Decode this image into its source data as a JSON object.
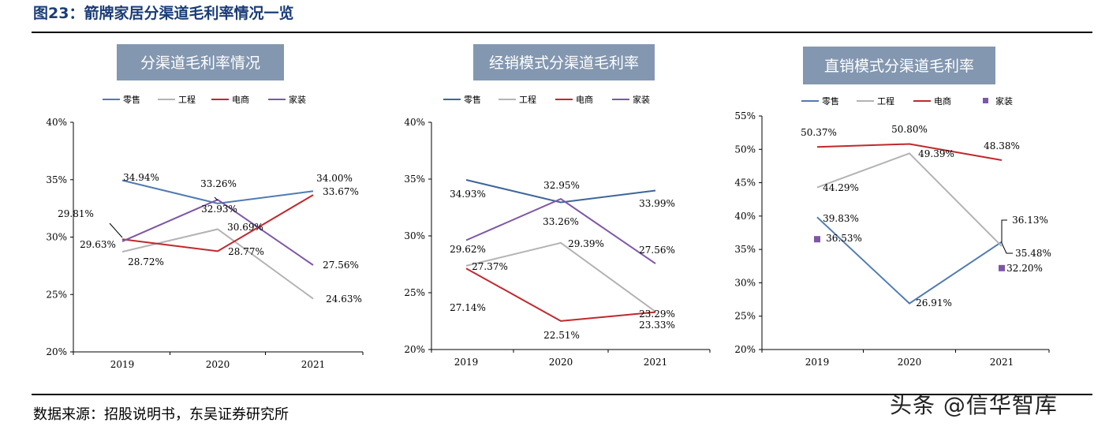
{
  "figure_title": "图23：箭牌家居分渠道毛利率情况一览",
  "source": "数据来源：招股说明书，东吴证券研究所",
  "watermark": "头条 @信华智库",
  "chart_data": [
    {
      "type": "line",
      "title": "分渠道毛利率情况",
      "x": [
        "2019",
        "2020",
        "2021"
      ],
      "ylim": [
        20,
        40
      ],
      "yticks": [
        20,
        25,
        30,
        35,
        40
      ],
      "ytick_labels": [
        "20%",
        "25%",
        "30%",
        "35%",
        "40%"
      ],
      "legend": [
        "零售",
        "工程",
        "电商",
        "家装"
      ],
      "series": [
        {
          "name": "零售",
          "color": "#4f7bb3",
          "values": [
            34.94,
            32.93,
            34.0
          ],
          "labels": [
            "34.94%",
            "32.93%",
            "34.00%"
          ]
        },
        {
          "name": "工程",
          "color": "#b3b3b3",
          "values": [
            28.72,
            30.69,
            24.63
          ],
          "labels": [
            "28.72%",
            "30.69%",
            "24.63%"
          ]
        },
        {
          "name": "电商",
          "color": "#c0282d",
          "values": [
            29.81,
            28.77,
            33.67
          ],
          "labels": [
            "29.81%",
            "28.77%",
            "33.67%"
          ]
        },
        {
          "name": "家装",
          "color": "#7e57a6",
          "values": [
            29.63,
            33.26,
            27.56
          ],
          "labels": [
            "29.63%",
            "33.26%",
            "27.56%"
          ]
        }
      ]
    },
    {
      "type": "line",
      "title": "经销模式分渠道毛利率",
      "x": [
        "2019",
        "2020",
        "2021"
      ],
      "ylim": [
        20,
        40
      ],
      "yticks": [
        20,
        25,
        30,
        35,
        40
      ],
      "ytick_labels": [
        "20%",
        "25%",
        "30%",
        "35%",
        "40%"
      ],
      "legend": [
        "零售",
        "工程",
        "电商",
        "家装"
      ],
      "series": [
        {
          "name": "零售",
          "color": "#3e6598",
          "values": [
            34.93,
            32.95,
            33.99
          ],
          "labels": [
            "34.93%",
            "32.95%",
            "33.99%"
          ]
        },
        {
          "name": "工程",
          "color": "#b3b3b3",
          "values": [
            27.37,
            29.39,
            23.33
          ],
          "labels": [
            "27.37%",
            "29.39%",
            "23.33%"
          ]
        },
        {
          "name": "电商",
          "color": "#c0282d",
          "values": [
            27.14,
            22.51,
            23.29
          ],
          "labels": [
            "27.14%",
            "22.51%",
            "23.29%"
          ]
        },
        {
          "name": "家装",
          "color": "#7e57a6",
          "values": [
            29.62,
            33.26,
            27.56
          ],
          "labels": [
            "29.62%",
            "33.26%",
            "27.56%"
          ]
        }
      ]
    },
    {
      "type": "line",
      "title": "直销模式分渠道毛利率",
      "x": [
        "2019",
        "2020",
        "2021"
      ],
      "ylim": [
        20,
        55
      ],
      "yticks": [
        20,
        25,
        30,
        35,
        40,
        45,
        50,
        55
      ],
      "ytick_labels": [
        "20%",
        "25%",
        "30%",
        "35%",
        "40%",
        "45%",
        "50%",
        "55%"
      ],
      "legend": [
        "零售",
        "工程",
        "电商",
        "家装"
      ],
      "series": [
        {
          "name": "零售",
          "color": "#4f7bb3",
          "values": [
            39.83,
            26.91,
            36.13
          ],
          "labels": [
            "39.83%",
            "26.91%",
            "36.13%"
          ]
        },
        {
          "name": "工程",
          "color": "#b3b3b3",
          "values": [
            44.29,
            49.39,
            35.48
          ],
          "labels": [
            "44.29%",
            "49.39%",
            "35.48%"
          ]
        },
        {
          "name": "电商",
          "color": "#c0282d",
          "values": [
            50.37,
            50.8,
            48.38
          ],
          "labels": [
            "50.37%",
            "50.80%",
            "48.38%"
          ]
        },
        {
          "name": "家装",
          "color": "#7e57a6",
          "style": "marker",
          "values": [
            36.53,
            null,
            32.2
          ],
          "labels": [
            "36.53%",
            null,
            "32.20%"
          ]
        }
      ]
    }
  ]
}
